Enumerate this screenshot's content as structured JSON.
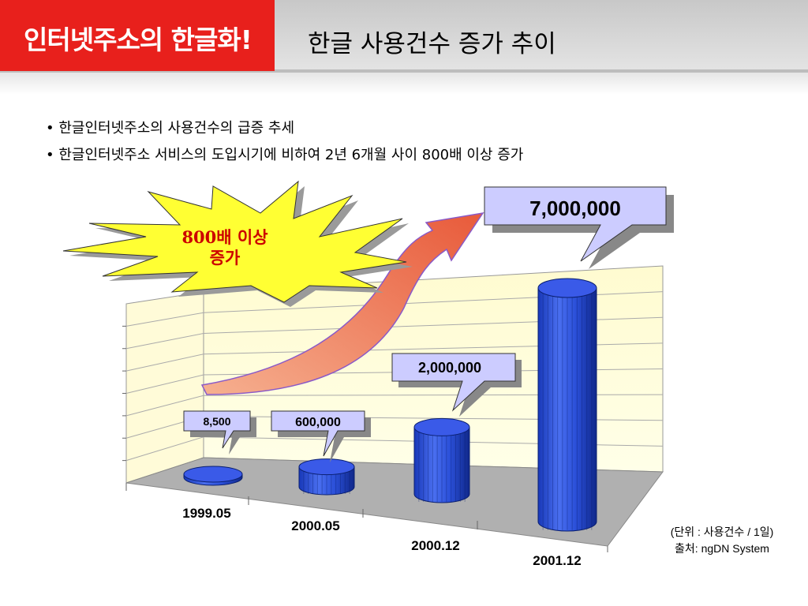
{
  "header": {
    "logo_text": "인터넷주소의 한글화!",
    "title": "한글 사용건수 증가 추이"
  },
  "bullets": [
    "한글인터넷주소의 사용건수의 급증 추세",
    "한글인터넷주소 서비스의 도입시기에 비하여 2년 6개월 사이 800배 이상 증가"
  ],
  "starburst": {
    "line1": "800배 이상",
    "line2": "증가"
  },
  "colors": {
    "logo_red": "#e8201c",
    "bar_blue": "#2a4fd8",
    "callout_fill": "#ccccff",
    "star_yellow": "#ffff33",
    "arrow_fill": "#f08060"
  },
  "chart_data": {
    "type": "bar",
    "categories": [
      "1999.05",
      "2000.05",
      "2000.12",
      "2001.12"
    ],
    "values": [
      8500,
      600000,
      2000000,
      7000000
    ],
    "value_labels": [
      "8,500",
      "600,000",
      "2,000,000",
      "7,000,000"
    ],
    "title": "",
    "xlabel": "",
    "ylabel": "",
    "grid": true
  },
  "note": {
    "unit": "(단위 : 사용건수 / 1일)",
    "source": "출처: ngDN System"
  }
}
